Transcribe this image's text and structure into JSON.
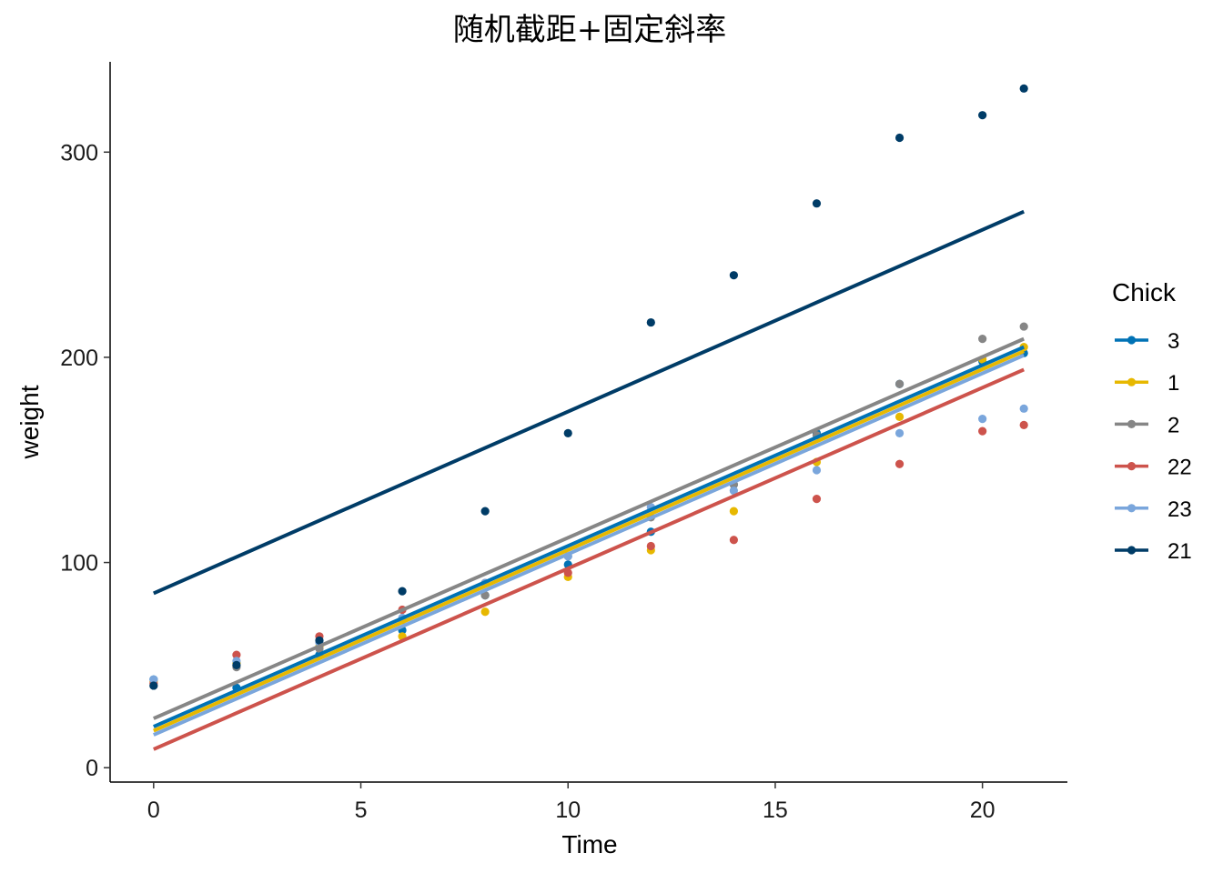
{
  "chart_data": {
    "type": "scatter",
    "title": "随机截距+固定斜率",
    "xlabel": "Time",
    "ylabel": "weight",
    "xlim": [
      -1.05,
      22.05
    ],
    "ylim": [
      -7,
      344
    ],
    "xticks": [
      0,
      5,
      10,
      15,
      20
    ],
    "yticks": [
      0,
      100,
      200,
      300
    ],
    "grid": false,
    "legend_title": "Chick",
    "legend_position": "right",
    "x": [
      0,
      2,
      4,
      6,
      8,
      10,
      12,
      14,
      16,
      18,
      20,
      21
    ],
    "series": [
      {
        "name": "3",
        "color": "#0072B5",
        "fit": [
          20,
          205
        ],
        "values": [
          43,
          39,
          55,
          67,
          84,
          99,
          115,
          138,
          163,
          187,
          198,
          202
        ]
      },
      {
        "name": "1",
        "color": "#E7B800",
        "fit": [
          18,
          203
        ],
        "values": [
          42,
          51,
          59,
          64,
          76,
          93,
          106,
          125,
          149,
          171,
          199,
          205
        ]
      },
      {
        "name": "2",
        "color": "#868686",
        "fit": [
          24,
          209
        ],
        "values": [
          40,
          49,
          58,
          72,
          84,
          103,
          122,
          138,
          162,
          187,
          209,
          215
        ]
      },
      {
        "name": "22",
        "color": "#CD534C",
        "fit": [
          9,
          194
        ],
        "values": [
          41,
          55,
          64,
          77,
          90,
          95,
          108,
          111,
          131,
          148,
          164,
          167
        ]
      },
      {
        "name": "23",
        "color": "#7AA6DC",
        "fit": [
          16,
          201
        ],
        "values": [
          43,
          52,
          61,
          73,
          90,
          103,
          127,
          135,
          145,
          163,
          170,
          175
        ]
      },
      {
        "name": "21",
        "color": "#003C67",
        "fit": [
          85,
          271
        ],
        "values": [
          40,
          50,
          62,
          86,
          125,
          163,
          217,
          240,
          275,
          307,
          318,
          331
        ]
      }
    ]
  }
}
